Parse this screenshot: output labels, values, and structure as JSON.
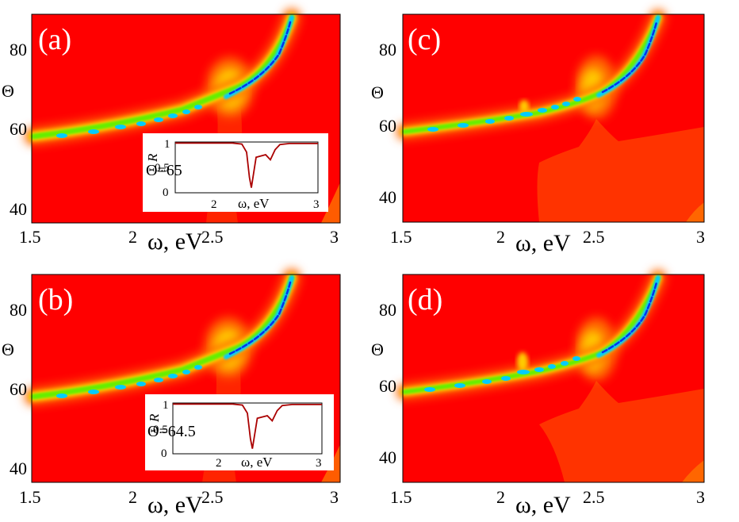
{
  "chart_data": [
    {
      "type": "heatmap",
      "panel_label": "(a)",
      "xlabel": "ω, eV",
      "ylabel": "Θ",
      "xlim": [
        1.5,
        3.0
      ],
      "ylim": [
        35,
        90
      ],
      "xticks": [
        "1.5",
        "2",
        "2.5",
        "3"
      ],
      "yticks": [
        "40",
        "60",
        "80"
      ],
      "xtick_values": [
        1.5,
        2.0,
        2.5,
        3.0
      ],
      "ytick_values": [
        40,
        60,
        80
      ],
      "resonance_curve": {
        "omega": [
          1.5,
          1.7,
          1.9,
          2.1,
          2.3,
          2.45,
          2.6,
          2.7,
          2.78
        ],
        "theta": [
          57.5,
          59,
          60.5,
          62.5,
          65.5,
          67,
          71,
          78,
          88
        ]
      },
      "gap": "none",
      "inset": {
        "annotation": "Θ=65",
        "xlabel": "ω, eV",
        "ylabel": "R",
        "xticks": [
          "2",
          "3"
        ],
        "yticks": [
          "0",
          "0.5",
          "1"
        ],
        "xlim": [
          1.5,
          3.0
        ],
        "ylim": [
          0,
          1
        ],
        "omega": [
          1.5,
          2.1,
          2.2,
          2.25,
          2.28,
          2.3,
          2.35,
          2.45,
          2.5,
          2.55,
          2.6,
          2.7,
          3.0
        ],
        "R": [
          0.98,
          0.98,
          0.96,
          0.8,
          0.3,
          0.1,
          0.7,
          0.75,
          0.65,
          0.85,
          0.95,
          0.97,
          0.97
        ]
      }
    },
    {
      "type": "heatmap",
      "panel_label": "(b)",
      "xlabel": "ω, eV",
      "ylabel": "Θ",
      "xlim": [
        1.5,
        3.0
      ],
      "ylim": [
        35,
        90
      ],
      "xticks": [
        "1.5",
        "2",
        "2.5",
        "3"
      ],
      "yticks": [
        "40",
        "60",
        "80"
      ],
      "xtick_values": [
        1.5,
        2.0,
        2.5,
        3.0
      ],
      "ytick_values": [
        40,
        60,
        80
      ],
      "resonance_curve": {
        "omega": [
          1.5,
          1.7,
          1.9,
          2.1,
          2.3,
          2.45,
          2.6,
          2.7,
          2.78
        ],
        "theta": [
          57.5,
          59,
          60.5,
          62.5,
          65.5,
          67,
          71,
          78,
          88
        ]
      },
      "gap": "none",
      "inset": {
        "annotation": "Θ=64.5",
        "xlabel": "ω, eV",
        "ylabel": "R",
        "xticks": [
          "2",
          "3"
        ],
        "yticks": [
          "0",
          "0.5",
          "1"
        ],
        "xlim": [
          1.5,
          3.0
        ],
        "ylim": [
          0,
          1
        ],
        "omega": [
          1.5,
          2.1,
          2.2,
          2.25,
          2.28,
          2.3,
          2.35,
          2.45,
          2.5,
          2.55,
          2.6,
          2.7,
          3.0
        ],
        "R": [
          0.98,
          0.98,
          0.96,
          0.8,
          0.3,
          0.1,
          0.7,
          0.75,
          0.65,
          0.85,
          0.95,
          0.97,
          0.97
        ]
      }
    },
    {
      "type": "heatmap",
      "panel_label": "(c)",
      "xlabel": "ω, eV",
      "ylabel": "Θ",
      "xlim": [
        1.5,
        3.0
      ],
      "ylim": [
        33,
        90
      ],
      "xticks": [
        "1.5",
        "2",
        "2.5",
        "3"
      ],
      "yticks": [
        "40",
        "60",
        "80"
      ],
      "xtick_values": [
        1.5,
        2.0,
        2.5,
        3.0
      ],
      "ytick_values": [
        40,
        60,
        80
      ],
      "resonance_curve": {
        "omega": [
          1.5,
          1.7,
          1.9,
          2.1,
          2.3,
          2.45,
          2.6,
          2.7,
          2.78
        ],
        "theta": [
          57.5,
          59,
          60.5,
          62.5,
          65.5,
          67,
          71,
          78,
          88
        ]
      },
      "gap": "at ω≈2.1 eV"
    },
    {
      "type": "heatmap",
      "panel_label": "(d)",
      "xlabel": "ω, eV",
      "ylabel": "Θ",
      "xlim": [
        1.5,
        3.0
      ],
      "ylim": [
        33,
        90
      ],
      "xticks": [
        "1.5",
        "2",
        "2.5",
        "3"
      ],
      "yticks": [
        "40",
        "60",
        "80"
      ],
      "xtick_values": [
        1.5,
        2.0,
        2.5,
        3.0
      ],
      "ytick_values": [
        40,
        60,
        80
      ],
      "resonance_curve": {
        "omega": [
          1.5,
          1.7,
          1.9,
          2.1,
          2.3,
          2.45,
          2.6,
          2.7,
          2.78
        ],
        "theta": [
          57.5,
          59,
          60.5,
          62.5,
          65.5,
          67,
          71,
          78,
          88
        ]
      },
      "gap": "at ω≈2.1 eV (larger)"
    }
  ],
  "colors": {
    "background": "#ff0000",
    "level1": "#ff3300",
    "level2": "#ff6600",
    "level3": "#ffaa00",
    "level4": "#eeee00",
    "level5": "#88ee00",
    "level6": "#00dd88",
    "level7": "#00ccff",
    "level8": "#0044ff",
    "inset_line": "#aa0000"
  }
}
